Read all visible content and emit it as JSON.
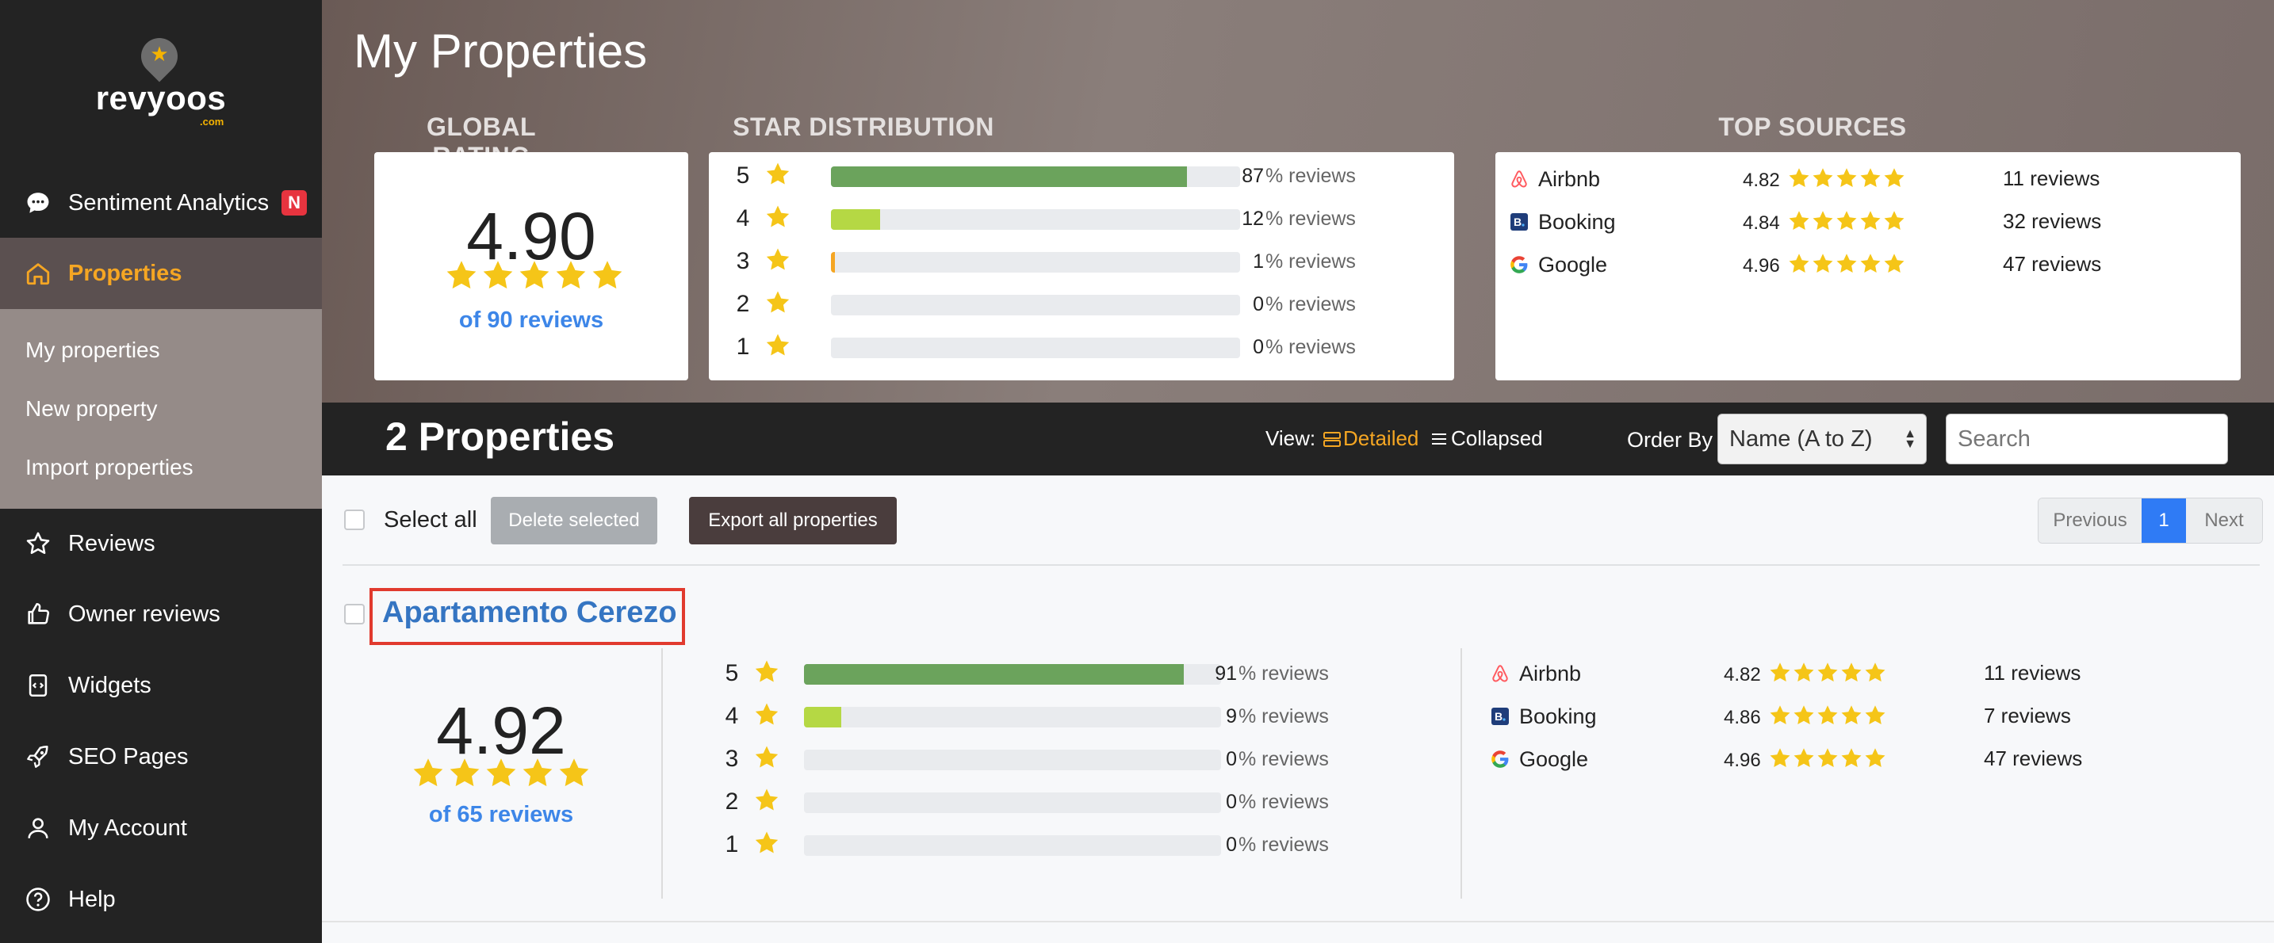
{
  "brand": {
    "name": "revyoos",
    "suffix": ".com"
  },
  "sidebar": {
    "items": [
      {
        "label": "Sentiment Analytics",
        "icon": "chat-bubble-icon",
        "badge": "N"
      },
      {
        "label": "Properties",
        "icon": "home-icon",
        "active": true
      },
      {
        "label": "Reviews",
        "icon": "star-outline-icon"
      },
      {
        "label": "Owner reviews",
        "icon": "thumbs-up-icon"
      },
      {
        "label": "Widgets",
        "icon": "code-file-icon"
      },
      {
        "label": "SEO Pages",
        "icon": "rocket-icon"
      },
      {
        "label": "My Account",
        "icon": "user-icon"
      },
      {
        "label": "Help",
        "icon": "help-circle-icon"
      }
    ],
    "submenu": [
      "My properties",
      "New property",
      "Import properties"
    ]
  },
  "header": {
    "title": "My Properties",
    "global_rating_label": "GLOBAL RATING",
    "star_distribution_label": "STAR DISTRIBUTION",
    "top_sources_label": "TOP SOURCES"
  },
  "global": {
    "rating": "4.90",
    "rating_value": 4.9,
    "reviews_text": "of 90 reviews",
    "distribution": [
      {
        "star": "5",
        "pct": "87",
        "label": "% reviews",
        "fill": 0.87,
        "color": "#6ba35c"
      },
      {
        "star": "4",
        "pct": "12",
        "label": "% reviews",
        "fill": 0.12,
        "color": "#b5d844"
      },
      {
        "star": "3",
        "pct": "1",
        "label": "% reviews",
        "fill": 0.01,
        "color": "#f5a623"
      },
      {
        "star": "2",
        "pct": "0",
        "label": "% reviews",
        "fill": 0,
        "color": "#e35b3a"
      },
      {
        "star": "1",
        "pct": "0",
        "label": "% reviews",
        "fill": 0,
        "color": "#d9312b"
      }
    ],
    "sources": [
      {
        "name": "Airbnb",
        "icon": "airbnb-icon",
        "score": "4.82",
        "count": "11 reviews"
      },
      {
        "name": "Booking",
        "icon": "booking-icon",
        "score": "4.84",
        "count": "32 reviews"
      },
      {
        "name": "Google",
        "icon": "google-icon",
        "score": "4.96",
        "count": "47 reviews"
      }
    ]
  },
  "toolbar": {
    "count_text": "2 Properties",
    "view_label": "View:",
    "view_detailed": "Detailed",
    "view_collapsed": "Collapsed",
    "order_label": "Order By",
    "order_value": "Name (A to Z)",
    "search_placeholder": "Search"
  },
  "actions": {
    "select_all": "Select all",
    "delete_selected": "Delete selected",
    "export_all": "Export all properties",
    "previous": "Previous",
    "page": "1",
    "next": "Next"
  },
  "property": {
    "title": "Apartamento Cerezo",
    "rating": "4.92",
    "rating_value": 4.92,
    "reviews_text": "of 65 reviews",
    "distribution": [
      {
        "star": "5",
        "pct": "91",
        "label": "% reviews",
        "fill": 0.91,
        "color": "#6ba35c"
      },
      {
        "star": "4",
        "pct": "9",
        "label": "% reviews",
        "fill": 0.09,
        "color": "#b5d844"
      },
      {
        "star": "3",
        "pct": "0",
        "label": "% reviews",
        "fill": 0,
        "color": "#f5a623"
      },
      {
        "star": "2",
        "pct": "0",
        "label": "% reviews",
        "fill": 0,
        "color": "#e35b3a"
      },
      {
        "star": "1",
        "pct": "0",
        "label": "% reviews",
        "fill": 0,
        "color": "#d9312b"
      }
    ],
    "sources": [
      {
        "name": "Airbnb",
        "icon": "airbnb-icon",
        "score": "4.82",
        "count": "11 reviews"
      },
      {
        "name": "Booking",
        "icon": "booking-icon",
        "score": "4.86",
        "count": "7 reviews"
      },
      {
        "name": "Google",
        "icon": "google-icon",
        "score": "4.96",
        "count": "47 reviews"
      }
    ]
  },
  "colors": {
    "star": "#f5c518",
    "accent": "#f5a623",
    "link": "#3d86e8",
    "primary": "#2f7bf5"
  }
}
